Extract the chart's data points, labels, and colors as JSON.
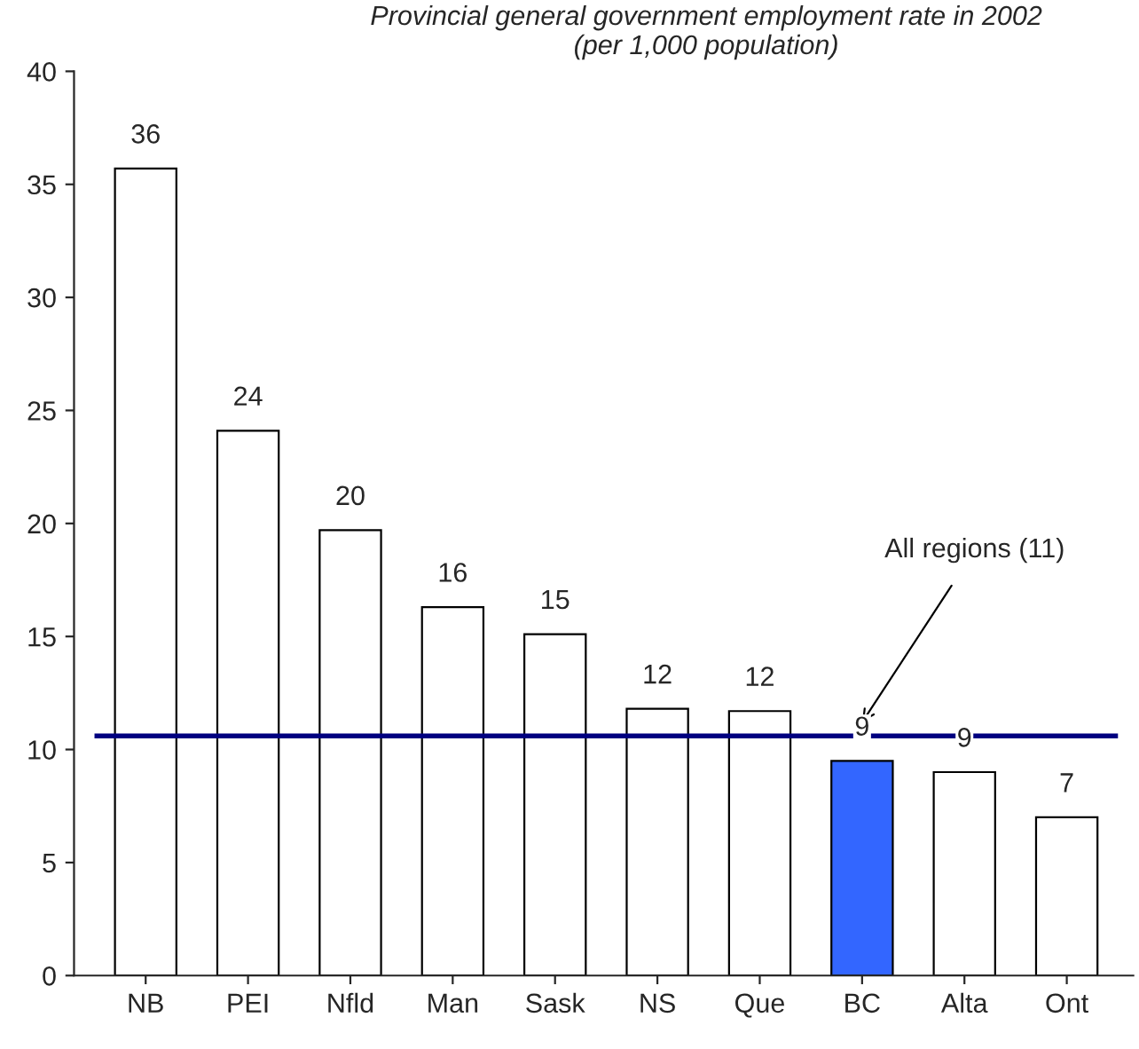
{
  "chart_data": {
    "type": "bar",
    "title": "Provincial general government employment rate in 2002\n(per 1,000 population)",
    "categories": [
      "NB",
      "PEI",
      "Nfld",
      "Man",
      "Sask",
      "NS",
      "Que",
      "BC",
      "Alta",
      "Ont"
    ],
    "values": [
      35.7,
      24.1,
      19.7,
      16.3,
      15.1,
      11.8,
      11.7,
      9.5,
      9.0,
      7.0
    ],
    "value_labels": [
      "36",
      "24",
      "20",
      "16",
      "15",
      "12",
      "12",
      "9",
      "9",
      "7"
    ],
    "colors": [
      "#ffffff",
      "#ffffff",
      "#ffffff",
      "#ffffff",
      "#ffffff",
      "#ffffff",
      "#ffffff",
      "#3366ff",
      "#ffffff",
      "#ffffff"
    ],
    "ylim": [
      0,
      40
    ],
    "yticks": [
      0,
      5,
      10,
      15,
      20,
      25,
      30,
      35,
      40
    ],
    "grid": false,
    "legend": false,
    "ref_lines": [
      {
        "axis": "y",
        "value": 10.6,
        "label": "All regions (11)",
        "color": "#000080",
        "line_style": "solid"
      }
    ]
  }
}
